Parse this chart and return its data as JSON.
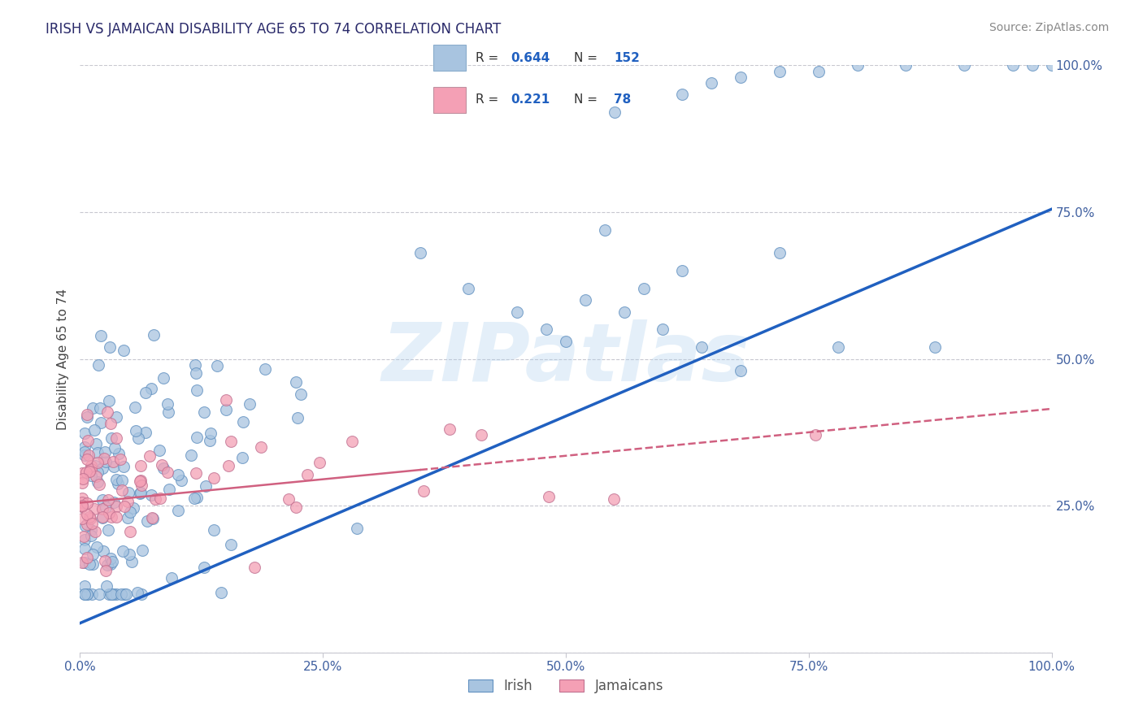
{
  "title": "IRISH VS JAMAICAN DISABILITY AGE 65 TO 74 CORRELATION CHART",
  "source": "Source: ZipAtlas.com",
  "ylabel": "Disability Age 65 to 74",
  "xlim": [
    0.0,
    1.0
  ],
  "ylim": [
    0.0,
    1.0
  ],
  "xticklabels": [
    "0.0%",
    "25.0%",
    "50.0%",
    "75.0%",
    "100.0%"
  ],
  "yticklabels": [
    "",
    "25.0%",
    "50.0%",
    "75.0%",
    "100.0%"
  ],
  "irish_color": "#a8c4e0",
  "jamaican_color": "#f4a0b5",
  "irish_line_color": "#2060c0",
  "jamaican_line_color": "#d06080",
  "irish_R": 0.644,
  "irish_N": 152,
  "jamaican_R": 0.221,
  "jamaican_N": 78,
  "watermark": "ZIPatlas",
  "background_color": "#ffffff",
  "grid_color": "#c8c8d0",
  "irish_line_y0": 0.05,
  "irish_line_y1": 0.755,
  "jamaican_line_y0": 0.255,
  "jamaican_line_y1": 0.415,
  "title_color": "#2a2a6a",
  "source_color": "#888888",
  "tick_color": "#4060a0",
  "legend_text_color": "#333333",
  "legend_value_color": "#2060c0"
}
